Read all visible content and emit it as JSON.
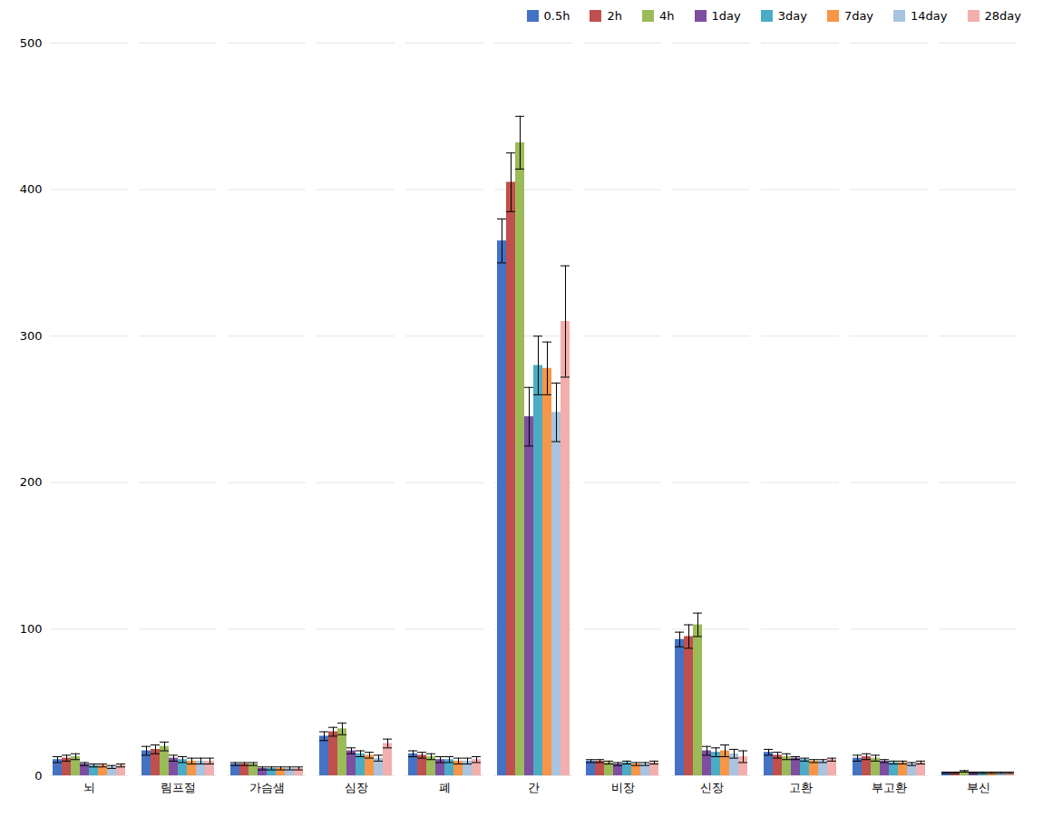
{
  "chart_data": {
    "type": "bar",
    "categories": [
      "뇌",
      "림프절",
      "가슴샘",
      "심장",
      "폐",
      "간",
      "비장",
      "신장",
      "고환",
      "부고환",
      "부신"
    ],
    "series": [
      {
        "name": "0.5h",
        "color": "#4472C4",
        "values": [
          11,
          17,
          8,
          27,
          15,
          365,
          10,
          93,
          16,
          12,
          2
        ],
        "errors": [
          2,
          3,
          1,
          3,
          2,
          15,
          1,
          5,
          2,
          2,
          0.5
        ]
      },
      {
        "name": "2h",
        "color": "#C0504D",
        "values": [
          12,
          18,
          8,
          30,
          14,
          405,
          10,
          95,
          14,
          13,
          2
        ],
        "errors": [
          2,
          3,
          1,
          3,
          2,
          20,
          1,
          8,
          2,
          2,
          0.5
        ]
      },
      {
        "name": "4h",
        "color": "#9BBB59",
        "values": [
          13,
          20,
          8,
          32,
          13,
          432,
          9,
          103,
          13,
          12,
          3
        ],
        "errors": [
          2,
          3,
          1,
          4,
          2,
          18,
          1,
          8,
          2,
          2,
          0.5
        ]
      },
      {
        "name": "1day",
        "color": "#7E4EA1",
        "values": [
          8,
          12,
          5,
          17,
          11,
          245,
          8,
          17,
          12,
          10,
          2
        ],
        "errors": [
          1,
          2,
          1,
          2,
          2,
          20,
          1,
          3,
          1,
          1,
          0.5
        ]
      },
      {
        "name": "3day",
        "color": "#4BACC6",
        "values": [
          7,
          11,
          5,
          15,
          11,
          280,
          9,
          16,
          11,
          9,
          2
        ],
        "errors": [
          1,
          2,
          1,
          2,
          2,
          20,
          1,
          3,
          1,
          1,
          0.5
        ]
      },
      {
        "name": "7day",
        "color": "#F79646",
        "values": [
          7,
          10,
          5,
          14,
          10,
          278,
          8,
          17,
          10,
          9,
          2
        ],
        "errors": [
          1,
          2,
          1,
          2,
          2,
          18,
          1,
          4,
          1,
          1,
          0.5
        ]
      },
      {
        "name": "14day",
        "color": "#A8C4E0",
        "values": [
          6,
          10,
          5,
          12,
          10,
          248,
          8,
          15,
          10,
          8,
          2
        ],
        "errors": [
          1,
          2,
          1,
          2,
          2,
          20,
          1,
          3,
          1,
          1,
          0.5
        ]
      },
      {
        "name": "28day",
        "color": "#F2AFAD",
        "values": [
          7,
          10,
          5,
          22,
          11,
          310,
          9,
          13,
          11,
          9,
          2
        ],
        "errors": [
          1,
          2,
          1,
          3,
          2,
          38,
          1,
          4,
          1,
          1,
          0.5
        ]
      }
    ],
    "ylim": [
      0,
      500
    ],
    "yticks": [
      0,
      100,
      200,
      300,
      400,
      500
    ],
    "grid": true,
    "legend": "upper right"
  }
}
